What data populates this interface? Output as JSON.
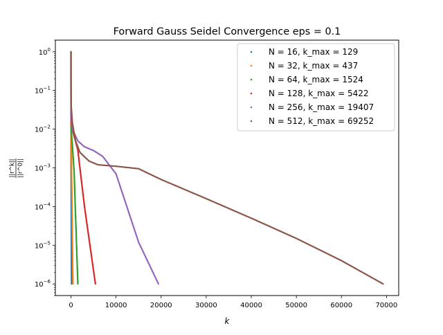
{
  "chart_data": {
    "type": "scatter",
    "title": "Forward Gauss Seidel Convergence eps = 0.1",
    "xlabel": "k",
    "ylabel_num": "||r^k||",
    "ylabel_den": "||r^0||",
    "yscale": "log",
    "xlim": [
      -3460,
      72710
    ],
    "ylim": [
      5e-07,
      2.0
    ],
    "grid": false,
    "legend_position": "upper right",
    "x_ticks": [
      0,
      10000,
      20000,
      30000,
      40000,
      50000,
      60000,
      70000
    ],
    "x_tick_labels": [
      "0",
      "10000",
      "20000",
      "30000",
      "40000",
      "50000",
      "60000",
      "70000"
    ],
    "y_ticks": [
      1e-06,
      1e-05,
      0.0001,
      0.001,
      0.01,
      0.1,
      1
    ],
    "y_tick_labels": [
      {
        "base": "10",
        "exp": "−6"
      },
      {
        "base": "10",
        "exp": "−5"
      },
      {
        "base": "10",
        "exp": "−4"
      },
      {
        "base": "10",
        "exp": "−3"
      },
      {
        "base": "10",
        "exp": "−2"
      },
      {
        "base": "10",
        "exp": "−1"
      },
      {
        "base": "10",
        "exp": "0"
      }
    ],
    "series": [
      {
        "name": "N = 16, k_max = 129",
        "color": "#1f77b4",
        "points": [
          [
            0,
            1.0
          ],
          [
            1,
            0.15
          ],
          [
            3,
            0.05
          ],
          [
            10,
            0.008
          ],
          [
            40,
            0.0004
          ],
          [
            80,
            2e-05
          ],
          [
            129,
            1e-06
          ]
        ]
      },
      {
        "name": "N = 32, k_max = 437",
        "color": "#ff7f0e",
        "points": [
          [
            0,
            1.0
          ],
          [
            1,
            0.17
          ],
          [
            5,
            0.04
          ],
          [
            30,
            0.006
          ],
          [
            100,
            0.002
          ],
          [
            200,
            0.0002
          ],
          [
            300,
            2e-05
          ],
          [
            437,
            1e-06
          ]
        ]
      },
      {
        "name": "N = 64, k_max = 1524",
        "color": "#2ca02c",
        "points": [
          [
            0,
            1.0
          ],
          [
            1,
            0.18
          ],
          [
            10,
            0.03
          ],
          [
            100,
            0.008
          ],
          [
            300,
            0.004
          ],
          [
            700,
            0.0008
          ],
          [
            1100,
            3e-05
          ],
          [
            1524,
            1e-06
          ]
        ]
      },
      {
        "name": "N = 128, k_max = 5422",
        "color": "#d62728",
        "points": [
          [
            0,
            1.0
          ],
          [
            2,
            0.18
          ],
          [
            20,
            0.025
          ],
          [
            150,
            0.012
          ],
          [
            500,
            0.008
          ],
          [
            1500,
            0.003
          ],
          [
            3000,
            0.0001
          ],
          [
            5422,
            1e-06
          ]
        ]
      },
      {
        "name": "N = 256, k_max = 19407",
        "color": "#9467bd",
        "points": [
          [
            0,
            1.0
          ],
          [
            2,
            0.18
          ],
          [
            30,
            0.03
          ],
          [
            300,
            0.01
          ],
          [
            1500,
            0.005
          ],
          [
            3000,
            0.0035
          ],
          [
            5000,
            0.0028
          ],
          [
            7000,
            0.002
          ],
          [
            10000,
            0.0007
          ],
          [
            15000,
            1.2e-05
          ],
          [
            19407,
            1e-06
          ]
        ]
      },
      {
        "name": "N = 512, k_max = 69252",
        "color": "#8c564b",
        "points": [
          [
            0,
            1.0
          ],
          [
            2,
            0.3
          ],
          [
            50,
            0.04
          ],
          [
            300,
            0.015
          ],
          [
            1000,
            0.005
          ],
          [
            2000,
            0.0025
          ],
          [
            4000,
            0.0015
          ],
          [
            6000,
            0.0012
          ],
          [
            10000,
            0.0011
          ],
          [
            15000,
            0.00095
          ],
          [
            20000,
            0.0005
          ],
          [
            30000,
            0.00016
          ],
          [
            40000,
            5e-05
          ],
          [
            50000,
            1.5e-05
          ],
          [
            60000,
            4e-06
          ],
          [
            69252,
            1e-06
          ]
        ]
      }
    ]
  }
}
